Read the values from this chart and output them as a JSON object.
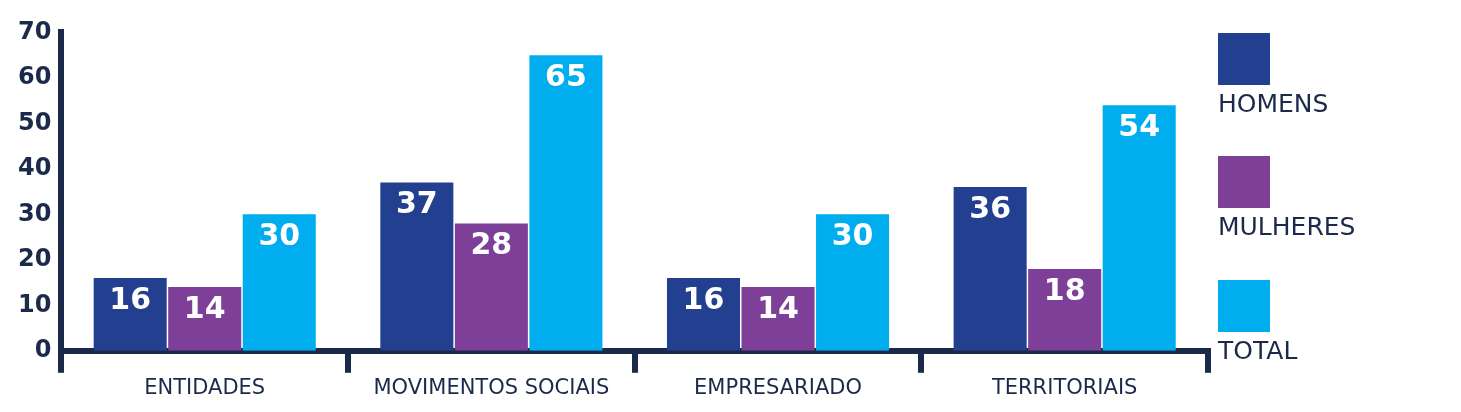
{
  "chart_data": {
    "type": "bar",
    "categories": [
      "ENTIDADES",
      "MOVIMENTOS SOCIAIS",
      "EMPRESARIADO",
      "TERRITORIAIS"
    ],
    "series": [
      {
        "name": "HOMENS",
        "color": "#233f8f",
        "values": [
          16,
          37,
          16,
          36
        ]
      },
      {
        "name": "MULHERES",
        "color": "#7d3f98",
        "values": [
          14,
          28,
          14,
          18
        ]
      },
      {
        "name": "TOTAL",
        "color": "#00aeef",
        "values": [
          30,
          65,
          30,
          54
        ]
      }
    ],
    "ylim": [
      0,
      70
    ],
    "yticks": [
      0,
      10,
      20,
      30,
      40,
      50,
      60,
      70
    ],
    "data_labels": true,
    "legend": "right"
  }
}
